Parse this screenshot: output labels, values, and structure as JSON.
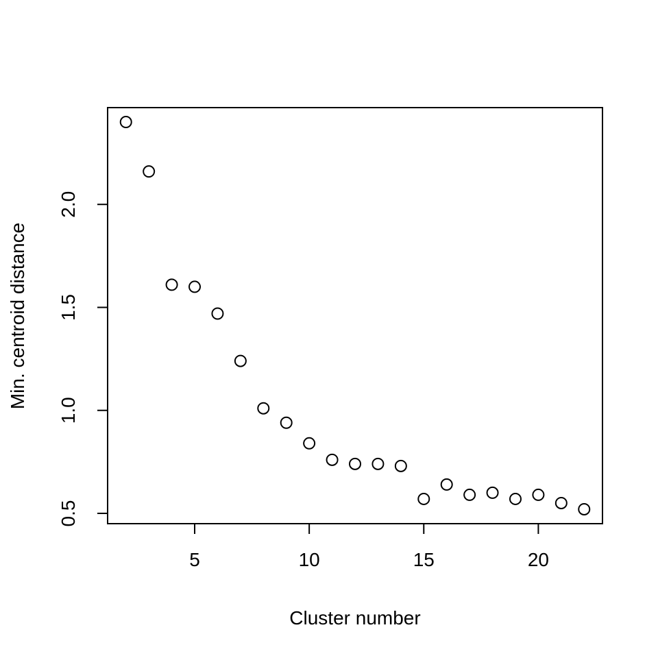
{
  "chart_data": {
    "type": "scatter",
    "title": "",
    "xlabel": "Cluster number",
    "ylabel": "Min. centroid distance",
    "xlim": [
      1.2,
      22.8
    ],
    "ylim": [
      0.45,
      2.47
    ],
    "x_ticks": [
      5,
      10,
      15,
      20
    ],
    "y_ticks": [
      0.5,
      1.0,
      1.5,
      2.0
    ],
    "x_tick_labels": [
      "5",
      "10",
      "15",
      "20"
    ],
    "y_tick_labels": [
      "0.5",
      "1.0",
      "1.5",
      "2.0"
    ],
    "grid": false,
    "marker": "open-circle",
    "series": [
      {
        "x": [
          2,
          3,
          4,
          5,
          6,
          7,
          8,
          9,
          10,
          11,
          12,
          13,
          14,
          15,
          16,
          17,
          18,
          19,
          20,
          21,
          22
        ],
        "y": [
          2.4,
          2.16,
          1.61,
          1.6,
          1.47,
          1.24,
          1.01,
          0.94,
          0.84,
          0.76,
          0.74,
          0.74,
          0.73,
          0.57,
          0.64,
          0.59,
          0.6,
          0.57,
          0.59,
          0.55,
          0.52
        ]
      }
    ]
  }
}
